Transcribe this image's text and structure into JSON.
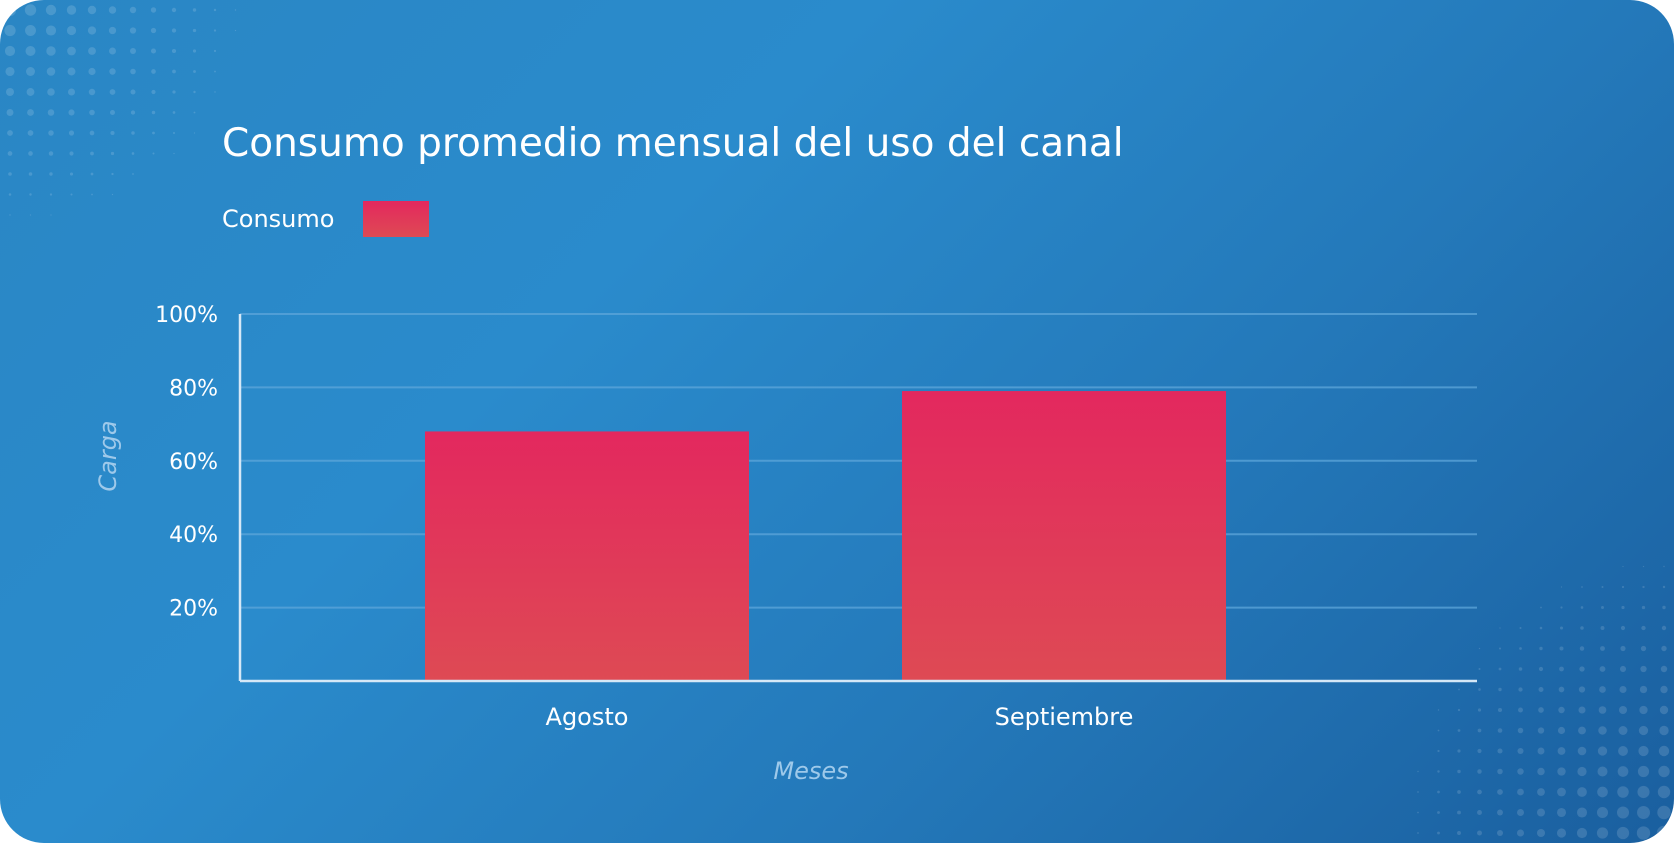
{
  "chart_data": {
    "type": "bar",
    "title": "Consumo promedio mensual del uso del canal",
    "categories": [
      "Agosto",
      "Septiembre"
    ],
    "series": [
      {
        "name": "Consumo",
        "values": [
          68,
          79
        ]
      }
    ],
    "xlabel": "Meses",
    "ylabel": "Carga",
    "ylim": [
      0,
      100
    ],
    "yticks": [
      {
        "value": 20,
        "label": "20%"
      },
      {
        "value": 40,
        "label": "40%"
      },
      {
        "value": 60,
        "label": "60%"
      },
      {
        "value": 80,
        "label": "80%"
      },
      {
        "value": 100,
        "label": "100%"
      }
    ],
    "grid": true,
    "legend_position": "top-left",
    "colors": {
      "bar_top": "#e3285e",
      "bar_bottom": "#de4a54",
      "grid": "#5ea6d9",
      "axis": "#d5e8f7",
      "axis_title": "#9ec9ea"
    }
  }
}
